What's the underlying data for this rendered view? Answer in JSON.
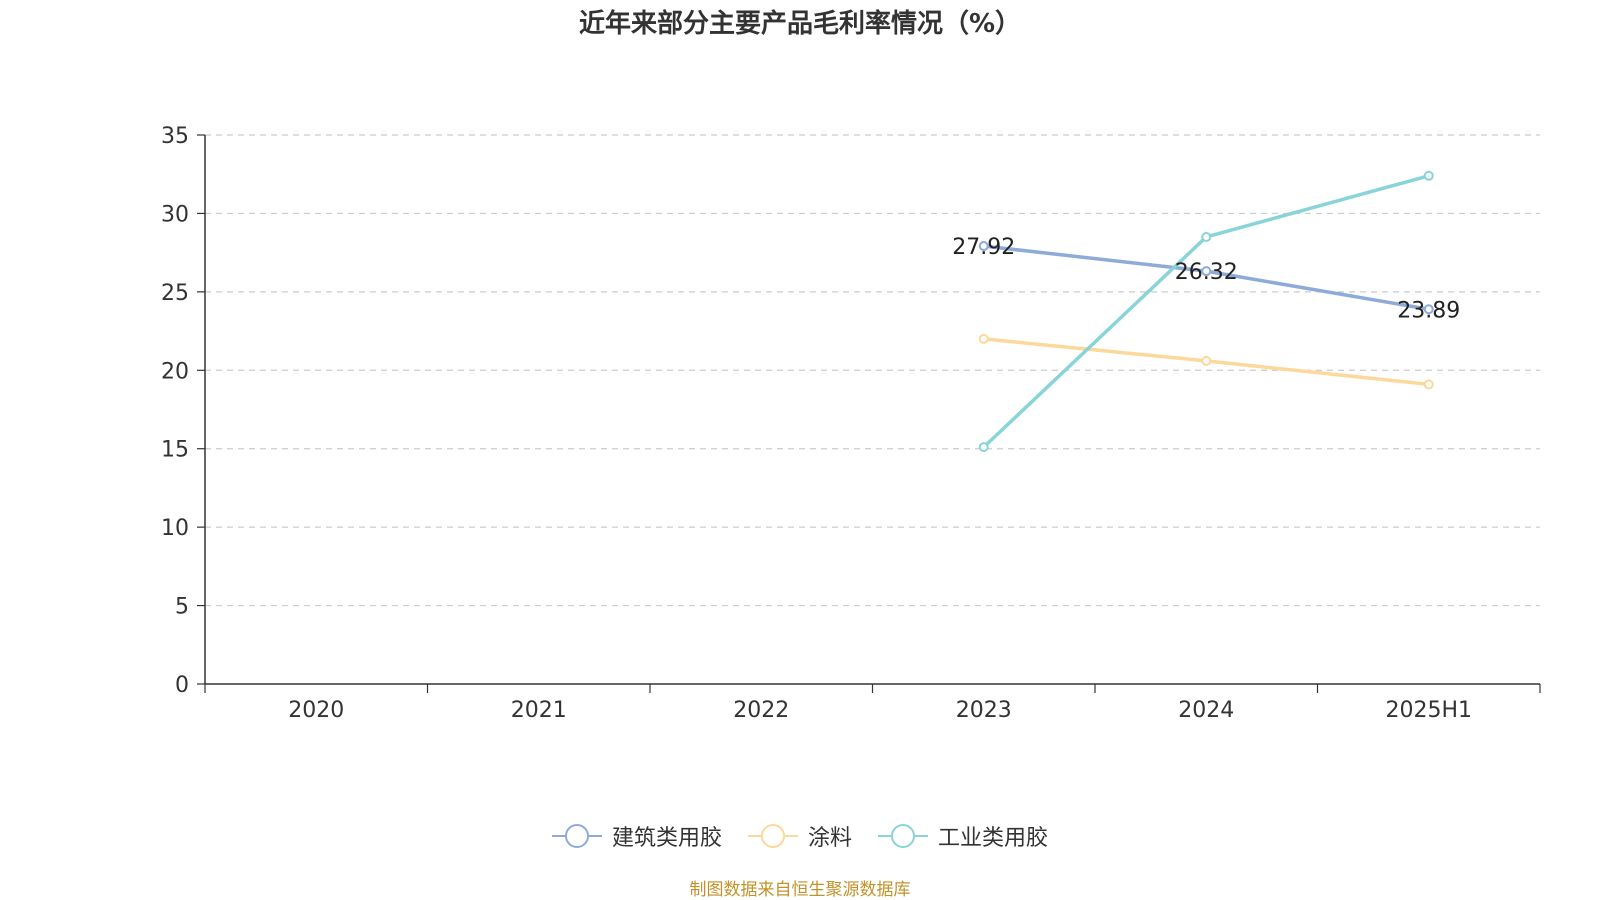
{
  "chart_data": {
    "type": "line",
    "title": "近年来部分主要产品毛利率情况（%）",
    "categories": [
      "2020",
      "2021",
      "2022",
      "2023",
      "2024",
      "2025H1"
    ],
    "ylim": [
      0,
      35
    ],
    "yticks": [
      0,
      5,
      10,
      15,
      20,
      25,
      30,
      35
    ],
    "grid": true,
    "legend_position": "bottom",
    "series": [
      {
        "name": "建筑类用胶",
        "color": "#8eaad8",
        "values": [
          null,
          null,
          null,
          27.92,
          26.32,
          23.89
        ],
        "show_labels": true
      },
      {
        "name": "涂料",
        "color": "#fcd89a",
        "values": [
          null,
          null,
          null,
          22.0,
          20.6,
          19.1
        ],
        "show_labels": false
      },
      {
        "name": "工业类用胶",
        "color": "#88d4d8",
        "values": [
          null,
          null,
          null,
          15.1,
          28.5,
          32.4
        ],
        "show_labels": false
      }
    ],
    "data_labels": [
      "27.92",
      "26.32",
      "23.89"
    ]
  },
  "footer": {
    "source": "制图数据来自恒生聚源数据库",
    "source_color": "#c2922a"
  }
}
